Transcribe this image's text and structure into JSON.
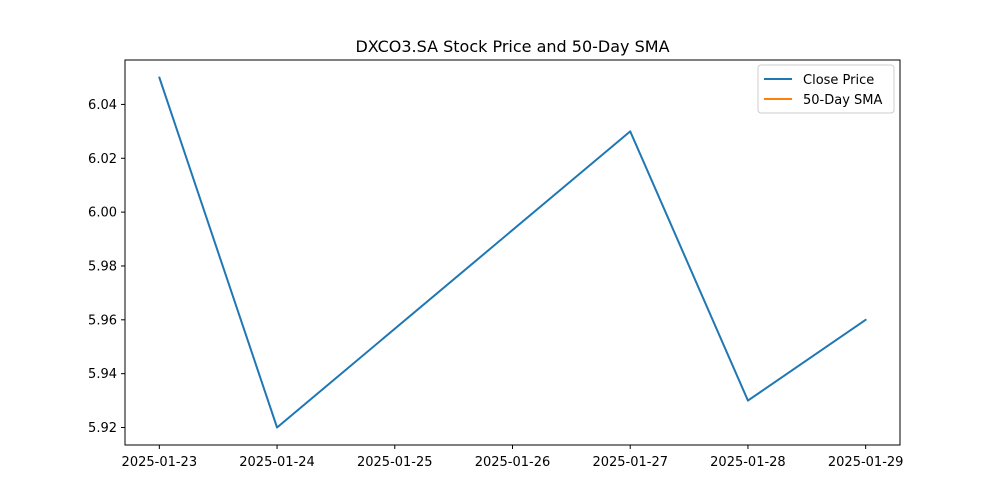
{
  "chart_data": {
    "type": "line",
    "title": "DXCO3.SA Stock Price and 50-Day SMA",
    "xlabel": "",
    "ylabel": "",
    "x": [
      "2025-01-23",
      "2025-01-24",
      "2025-01-27",
      "2025-01-28",
      "2025-01-29"
    ],
    "x_ticks": [
      "2025-01-23",
      "2025-01-24",
      "2025-01-25",
      "2025-01-26",
      "2025-01-27",
      "2025-01-28",
      "2025-01-29"
    ],
    "y_ticks": [
      5.92,
      5.94,
      5.96,
      5.98,
      6.0,
      6.02,
      6.04
    ],
    "xlim": [
      "2025-01-22T17:00",
      "2025-01-29T07:00"
    ],
    "ylim": [
      5.9135,
      6.0565
    ],
    "series": [
      {
        "name": "Close Price",
        "color": "#1f77b4",
        "values": [
          6.05,
          5.92,
          6.03,
          5.93,
          5.96
        ]
      },
      {
        "name": "50-Day SMA",
        "color": "#ff7f0e",
        "values": [
          null,
          null,
          null,
          null,
          null
        ]
      }
    ],
    "legend": {
      "position": "top-right",
      "entries": [
        "Close Price",
        "50-Day SMA"
      ]
    },
    "grid": false
  }
}
